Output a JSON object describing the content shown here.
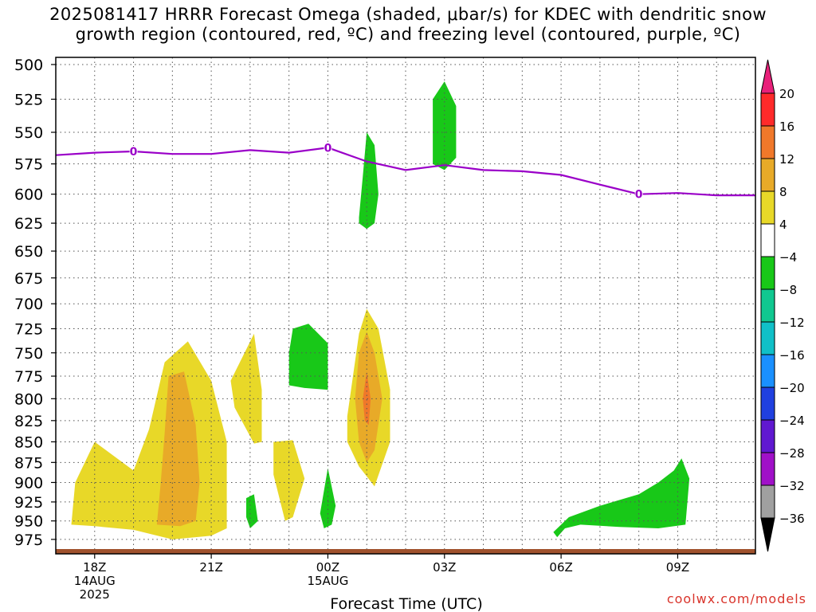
{
  "title_lines": [
    "2025081417 HRRR Forecast Omega (shaded, μbar/s) for KDEC with dendritic snow",
    "growth region (contoured, red, ºC) and freezing level (contoured, purple, ºC)"
  ],
  "credit": "coolwx.com/models",
  "colors": {
    "freezing_level": "#9a00c8",
    "ground": "#a0522d",
    "grid": "#555555"
  },
  "chart_data": {
    "type": "area",
    "xlabel": "Forecast Time (UTC)",
    "x_range_hours": [
      -1,
      17
    ],
    "x_ticks": [
      {
        "hour": 0,
        "lines": [
          "18Z",
          "14AUG",
          "2025"
        ]
      },
      {
        "hour": 3,
        "lines": [
          "21Z"
        ]
      },
      {
        "hour": 6,
        "lines": [
          "00Z",
          "15AUG"
        ]
      },
      {
        "hour": 9,
        "lines": [
          "03Z"
        ]
      },
      {
        "hour": 12,
        "lines": [
          "06Z"
        ]
      },
      {
        "hour": 15,
        "lines": [
          "09Z"
        ]
      }
    ],
    "y_axis": {
      "log_scale": true,
      "range_hpa": [
        495,
        995
      ],
      "ticks": [
        500,
        525,
        550,
        575,
        600,
        625,
        650,
        675,
        700,
        725,
        750,
        775,
        800,
        825,
        850,
        875,
        900,
        925,
        950,
        975
      ]
    },
    "grid": true,
    "colorbar": {
      "labels": [
        "20",
        "16",
        "12",
        "8",
        "4",
        "−4",
        "−8",
        "−12",
        "−16",
        "−20",
        "−24",
        "−28",
        "−32",
        "−36"
      ],
      "colors": [
        "#ff2a2a",
        "#f0782a",
        "#e8aa28",
        "#e8d828",
        "#ffffff",
        "#18c818",
        "#10c890",
        "#10c0c8",
        "#1a90ff",
        "#2040e0",
        "#6018d0",
        "#a010c8",
        "#a0a0a0"
      ],
      "top_arrow_color": "#e8207a",
      "bottom_arrow_color": "#000000"
    },
    "freezing_level": {
      "label": "0",
      "points": [
        [
          -1,
          568
        ],
        [
          0,
          566
        ],
        [
          1,
          565
        ],
        [
          2,
          567
        ],
        [
          3,
          567
        ],
        [
          4,
          564
        ],
        [
          5,
          566
        ],
        [
          6,
          562
        ],
        [
          7,
          573
        ],
        [
          8,
          580
        ],
        [
          9,
          576
        ],
        [
          10,
          580
        ],
        [
          11,
          581
        ],
        [
          12,
          584
        ],
        [
          13,
          592
        ],
        [
          14,
          600
        ],
        [
          15,
          599
        ],
        [
          16,
          601
        ],
        [
          17,
          601
        ]
      ],
      "label_hours": [
        1,
        6,
        14
      ]
    },
    "omega_regions": [
      {
        "value": 4,
        "points": [
          [
            -0.6,
            955
          ],
          [
            -0.5,
            900
          ],
          [
            0,
            850
          ],
          [
            1,
            885
          ],
          [
            1.4,
            835
          ],
          [
            1.8,
            760
          ],
          [
            2.4,
            738
          ],
          [
            3,
            780
          ],
          [
            3.4,
            850
          ],
          [
            3.4,
            900
          ],
          [
            3.4,
            960
          ],
          [
            3,
            970
          ],
          [
            2,
            975
          ],
          [
            1,
            962
          ],
          [
            0,
            957
          ]
        ]
      },
      {
        "value": 8,
        "points": [
          [
            1.6,
            955
          ],
          [
            1.7,
            900
          ],
          [
            1.8,
            840
          ],
          [
            1.9,
            775
          ],
          [
            2.3,
            770
          ],
          [
            2.6,
            830
          ],
          [
            2.7,
            900
          ],
          [
            2.6,
            950
          ],
          [
            2.2,
            957
          ]
        ]
      },
      {
        "value": 4,
        "points": [
          [
            3.5,
            780
          ],
          [
            4.1,
            730
          ],
          [
            4.3,
            790
          ],
          [
            4.3,
            850
          ],
          [
            4.1,
            852
          ],
          [
            3.6,
            810
          ]
        ]
      },
      {
        "value": 4,
        "points": [
          [
            4.6,
            850
          ],
          [
            5.1,
            848
          ],
          [
            5.4,
            895
          ],
          [
            5.1,
            945
          ],
          [
            4.9,
            950
          ],
          [
            4.6,
            890
          ]
        ]
      },
      {
        "value": -4,
        "points": [
          [
            3.9,
            920
          ],
          [
            4.1,
            915
          ],
          [
            4.2,
            950
          ],
          [
            4.0,
            960
          ],
          [
            3.9,
            945
          ]
        ]
      },
      {
        "value": -4,
        "points": [
          [
            5.1,
            725
          ],
          [
            5.5,
            720
          ],
          [
            6,
            740
          ],
          [
            6,
            790
          ],
          [
            5.4,
            788
          ],
          [
            5.0,
            785
          ],
          [
            5.0,
            750
          ]
        ]
      },
      {
        "value": -4,
        "points": [
          [
            5.8,
            940
          ],
          [
            6.0,
            882
          ],
          [
            6.2,
            930
          ],
          [
            6.1,
            955
          ],
          [
            5.9,
            960
          ]
        ]
      },
      {
        "value": 4,
        "points": [
          [
            6.5,
            820
          ],
          [
            6.8,
            730
          ],
          [
            7.0,
            705
          ],
          [
            7.3,
            725
          ],
          [
            7.6,
            790
          ],
          [
            7.6,
            850
          ],
          [
            7.2,
            905
          ],
          [
            6.8,
            880
          ],
          [
            6.5,
            850
          ]
        ]
      },
      {
        "value": 8,
        "points": [
          [
            6.7,
            800
          ],
          [
            6.8,
            750
          ],
          [
            7.0,
            728
          ],
          [
            7.2,
            750
          ],
          [
            7.4,
            800
          ],
          [
            7.2,
            860
          ],
          [
            7.0,
            875
          ],
          [
            6.8,
            850
          ]
        ]
      },
      {
        "value": 12,
        "points": [
          [
            6.9,
            800
          ],
          [
            7.0,
            770
          ],
          [
            7.1,
            800
          ],
          [
            7.05,
            830
          ],
          [
            6.95,
            825
          ]
        ]
      },
      {
        "value": -4,
        "points": [
          [
            6.8,
            620
          ],
          [
            6.9,
            585
          ],
          [
            7.0,
            550
          ],
          [
            7.2,
            560
          ],
          [
            7.3,
            600
          ],
          [
            7.2,
            625
          ],
          [
            7.0,
            630
          ],
          [
            6.8,
            625
          ]
        ]
      },
      {
        "value": -4,
        "points": [
          [
            8.7,
            525
          ],
          [
            9.0,
            512
          ],
          [
            9.3,
            530
          ],
          [
            9.3,
            570
          ],
          [
            9.0,
            580
          ],
          [
            8.7,
            575
          ]
        ]
      },
      {
        "value": -4,
        "points": [
          [
            11.8,
            965
          ],
          [
            12.2,
            945
          ],
          [
            13,
            930
          ],
          [
            14,
            915
          ],
          [
            14.5,
            900
          ],
          [
            14.9,
            885
          ],
          [
            15.1,
            870
          ],
          [
            15.3,
            895
          ],
          [
            15.2,
            955
          ],
          [
            14.5,
            960
          ],
          [
            13.5,
            958
          ],
          [
            12.5,
            955
          ],
          [
            12.1,
            960
          ],
          [
            11.9,
            972
          ]
        ]
      }
    ],
    "ground": {
      "bottom_hpa": 995
    }
  }
}
